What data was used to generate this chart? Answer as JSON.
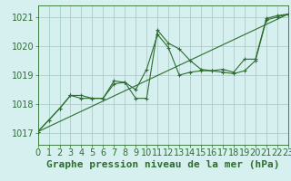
{
  "title": "Graphe pression niveau de la mer (hPa)",
  "bg_color": "#d6f0f0",
  "plot_bg_color": "#d6f0f0",
  "bottom_bg": "#d6f0f0",
  "grid_color": "#99ccbb",
  "line_color": "#2d6e2d",
  "xlim": [
    0,
    23
  ],
  "ylim": [
    1016.6,
    1021.4
  ],
  "yticks": [
    1017,
    1018,
    1019,
    1020,
    1021
  ],
  "xticks": [
    0,
    1,
    2,
    3,
    4,
    5,
    6,
    7,
    8,
    9,
    10,
    11,
    12,
    13,
    14,
    15,
    16,
    17,
    18,
    19,
    20,
    21,
    22,
    23
  ],
  "series1_x": [
    0,
    1,
    2,
    3,
    4,
    5,
    6,
    7,
    8,
    9,
    10,
    11,
    12,
    13,
    14,
    15,
    16,
    17,
    18,
    19,
    20,
    21,
    22,
    23
  ],
  "series1_y": [
    1017.05,
    1017.45,
    1017.85,
    1018.3,
    1018.3,
    1018.2,
    1018.2,
    1018.8,
    1018.75,
    1018.2,
    1018.2,
    1020.55,
    1020.1,
    1019.9,
    1019.5,
    1019.2,
    1019.15,
    1019.1,
    1019.05,
    1019.15,
    1019.5,
    1020.9,
    1021.0,
    1021.1
  ],
  "series2_x": [
    0,
    1,
    2,
    3,
    4,
    5,
    6,
    7,
    8,
    9,
    10,
    11,
    12,
    13,
    14,
    15,
    16,
    17,
    18,
    19,
    20,
    21,
    22,
    23
  ],
  "series2_y": [
    1017.05,
    1017.45,
    1017.85,
    1018.3,
    1018.2,
    1018.2,
    1018.2,
    1018.7,
    1018.75,
    1018.5,
    1019.2,
    1020.4,
    1019.95,
    1019.0,
    1019.1,
    1019.15,
    1019.15,
    1019.2,
    1019.1,
    1019.55,
    1019.55,
    1020.95,
    1021.05,
    1021.1
  ],
  "trend_x": [
    0,
    23
  ],
  "trend_y": [
    1017.05,
    1021.1
  ],
  "font_size": 7,
  "marker_size": 3.5,
  "line_width": 0.8
}
